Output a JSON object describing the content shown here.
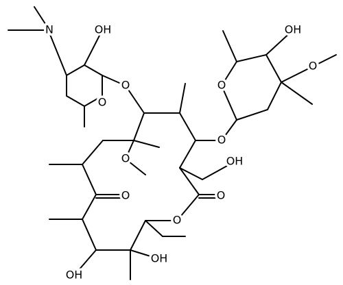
{
  "atom_labels": [
    "N",
    "OH",
    "O",
    "O",
    "O",
    "OH",
    "O",
    "O",
    "OH",
    "O",
    "O",
    "O",
    "O",
    "OH",
    "OH"
  ]
}
